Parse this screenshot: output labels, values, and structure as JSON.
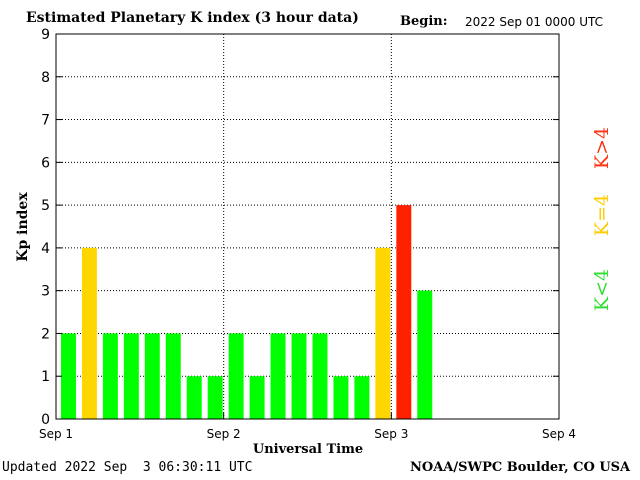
{
  "header": {
    "title": "Estimated Planetary K index (3 hour data)",
    "begin_label": "Begin:",
    "begin_value": "2022 Sep 01 0000 UTC"
  },
  "footer": {
    "updated": "Updated 2022 Sep  3 06:30:11 UTC",
    "credit": "NOAA/SWPC Boulder, CO USA"
  },
  "legend": {
    "above": "K>4",
    "equal": "K=4",
    "below": "K<4"
  },
  "colors": {
    "low": "#00ff00",
    "equal": "#ffd700",
    "high": "#ff2000",
    "legend_low": "#33dd33",
    "legend_equal": "#ffcc00",
    "legend_high": "#ff3311"
  },
  "chart_data": {
    "type": "bar",
    "xlabel": "Universal Time",
    "ylabel": "Kp index",
    "ylim": [
      0,
      9
    ],
    "yticks": [
      "0",
      "1",
      "2",
      "3",
      "4",
      "5",
      "6",
      "7",
      "8",
      "9"
    ],
    "xticks": [
      "Sep 1",
      "Sep 2",
      "Sep 3",
      "Sep 4"
    ],
    "grid": true,
    "interval_hours": 3,
    "values": [
      2,
      4,
      2,
      2,
      2,
      2,
      1,
      1,
      2,
      1,
      2,
      2,
      2,
      1,
      1,
      4,
      5,
      3
    ]
  }
}
